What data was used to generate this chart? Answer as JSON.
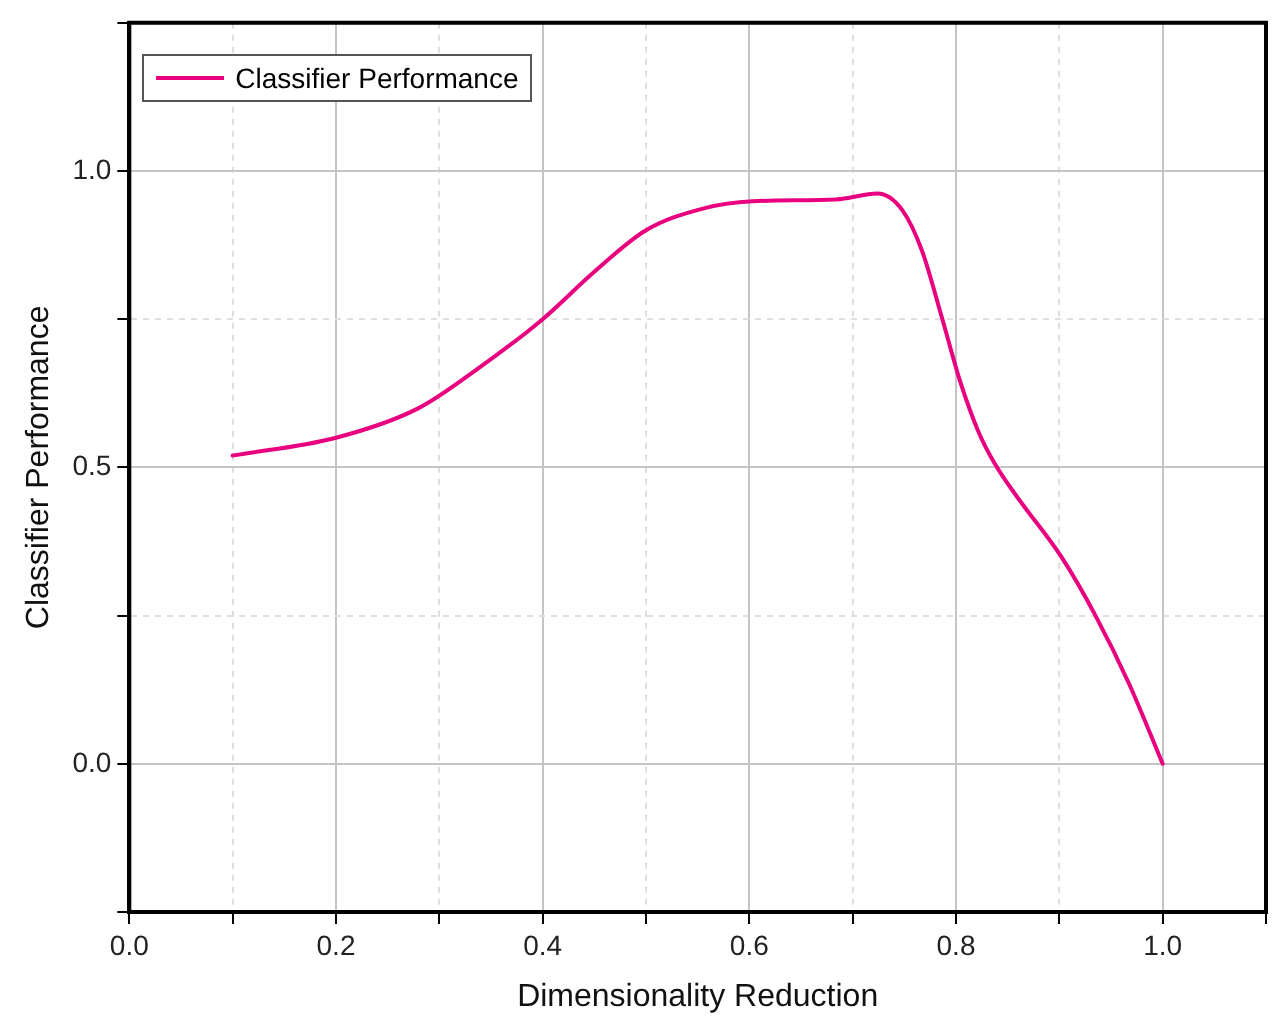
{
  "chart_data": {
    "type": "line",
    "xlabel": "Dimensionality Reduction",
    "ylabel": "Classifier Performance",
    "xlim": [
      0,
      1.1
    ],
    "ylim": [
      -0.25,
      1.25
    ],
    "xticks": [
      {
        "value": 0,
        "label": "0.0"
      },
      {
        "value": 0.1,
        "label": null
      },
      {
        "value": 0.2,
        "label": "0.2"
      },
      {
        "value": 0.3,
        "label": null
      },
      {
        "value": 0.4,
        "label": "0.4"
      },
      {
        "value": 0.5,
        "label": null
      },
      {
        "value": 0.6,
        "label": "0.6"
      },
      {
        "value": 0.7,
        "label": null
      },
      {
        "value": 0.8,
        "label": "0.8"
      },
      {
        "value": 0.9,
        "label": null
      },
      {
        "value": 1,
        "label": "1.0"
      },
      {
        "value": 1.1,
        "label": null
      }
    ],
    "yticks": [
      {
        "value": -0.25,
        "label": null
      },
      {
        "value": 0,
        "label": "0.0"
      },
      {
        "value": 0.25,
        "label": null
      },
      {
        "value": 0.5,
        "label": "0.5"
      },
      {
        "value": 0.75,
        "label": null
      },
      {
        "value": 1,
        "label": "1.0"
      },
      {
        "value": 1.25,
        "label": null
      }
    ],
    "grid": true,
    "legend": "top left",
    "marker": "none",
    "line_style": "solid",
    "series": [
      {
        "name": "Classifier Performance",
        "color": "#e8007f",
        "x": [
          0.1,
          0.2,
          0.28,
          0.34,
          0.4,
          0.45,
          0.5,
          0.556,
          0.603,
          0.684,
          0.724,
          0.748,
          0.767,
          0.786,
          0.804,
          0.822,
          0.837,
          0.858,
          0.902,
          0.935,
          0.968,
          1.0
        ],
        "values": [
          0.52,
          0.55,
          0.6,
          0.67,
          0.75,
          0.83,
          0.9,
          0.937,
          0.949,
          0.952,
          0.962,
          0.934,
          0.866,
          0.755,
          0.645,
          0.559,
          0.508,
          0.453,
          0.349,
          0.25,
          0.133,
          0
        ]
      }
    ]
  }
}
